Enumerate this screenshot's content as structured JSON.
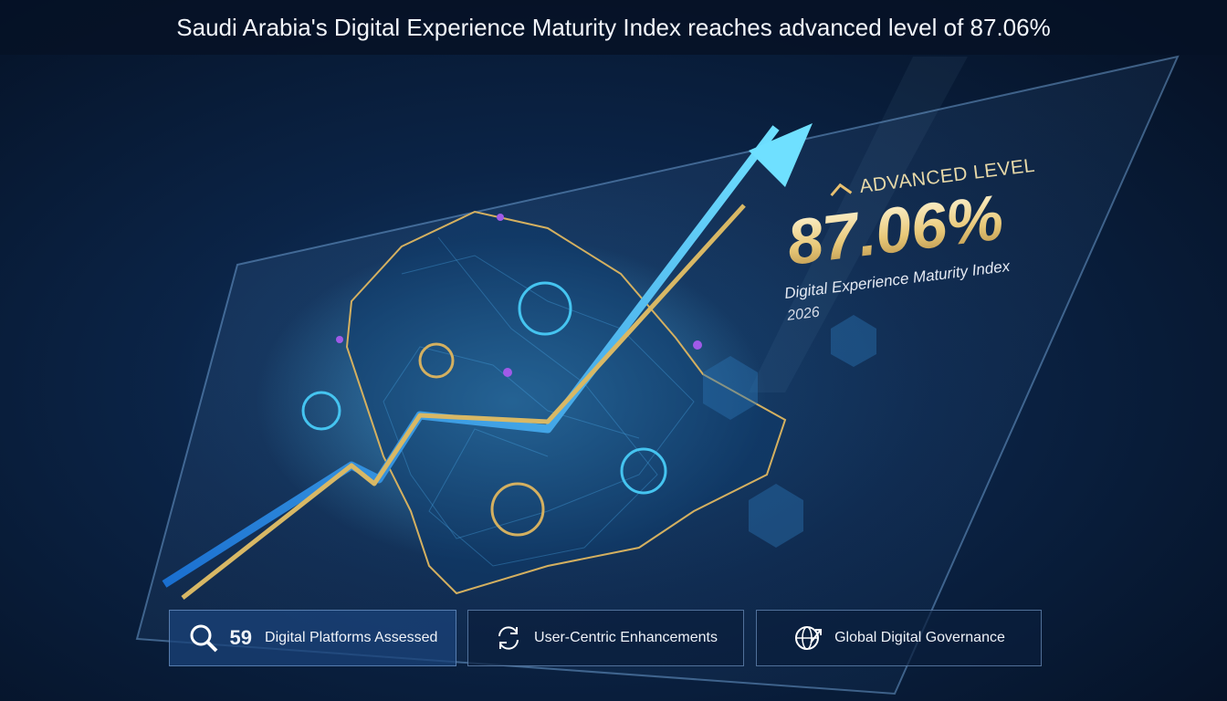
{
  "header": {
    "title": "Saudi Arabia's Digital Experience Maturity Index reaches advanced level of 87.06%"
  },
  "highlight": {
    "level": "ADVANCED LEVEL",
    "value": "87.06%",
    "label": "Digital Experience Maturity Index",
    "year": "2026"
  },
  "stats": [
    {
      "number": "59",
      "label": "Digital Platforms Assessed"
    },
    {
      "label": "User-Centric Enhancements"
    },
    {
      "label": "Global Digital Governance"
    }
  ]
}
